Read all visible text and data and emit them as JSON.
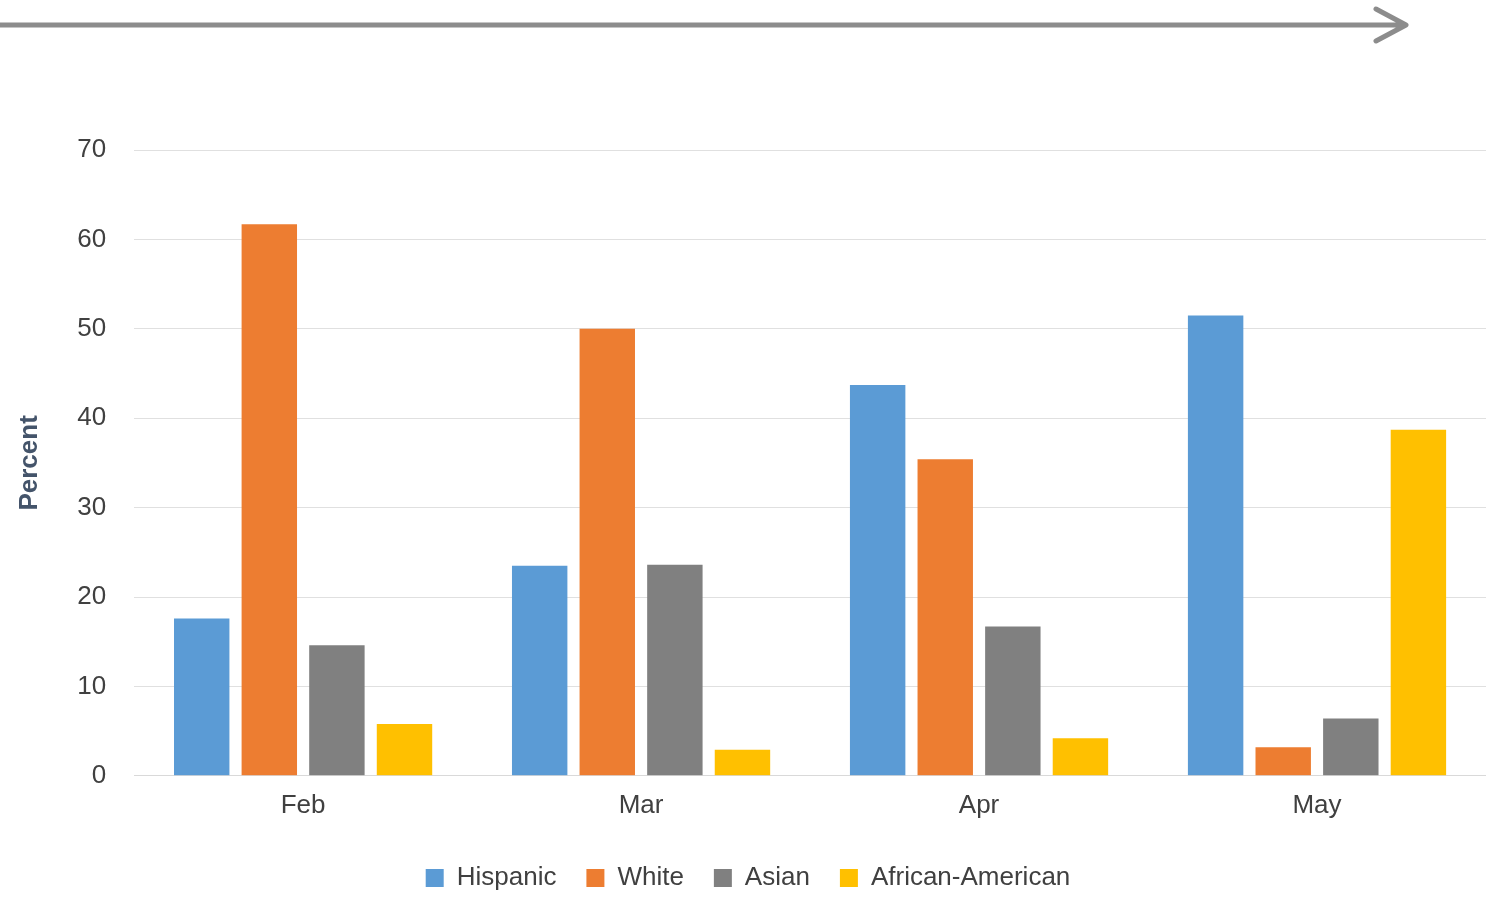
{
  "chart_data": {
    "type": "bar",
    "ylabel": "Percent",
    "categories": [
      "Feb",
      "Mar",
      "Apr",
      "May"
    ],
    "series": [
      {
        "name": "Hispanic",
        "color": "#5b9bd5",
        "values": [
          17.6,
          23.5,
          43.7,
          51.5
        ]
      },
      {
        "name": "White",
        "color": "#ed7d31",
        "values": [
          61.7,
          50.0,
          35.4,
          3.2
        ]
      },
      {
        "name": "Asian",
        "color": "#808080",
        "values": [
          14.6,
          23.6,
          16.7,
          6.4
        ]
      },
      {
        "name": "African-American",
        "color": "#ffc000",
        "values": [
          5.8,
          2.9,
          4.2,
          38.7
        ]
      }
    ],
    "ylim": [
      0,
      70
    ],
    "yticks": [
      0,
      10,
      20,
      30,
      40,
      50,
      60,
      70
    ],
    "grid": "y",
    "legend": "bottom"
  }
}
